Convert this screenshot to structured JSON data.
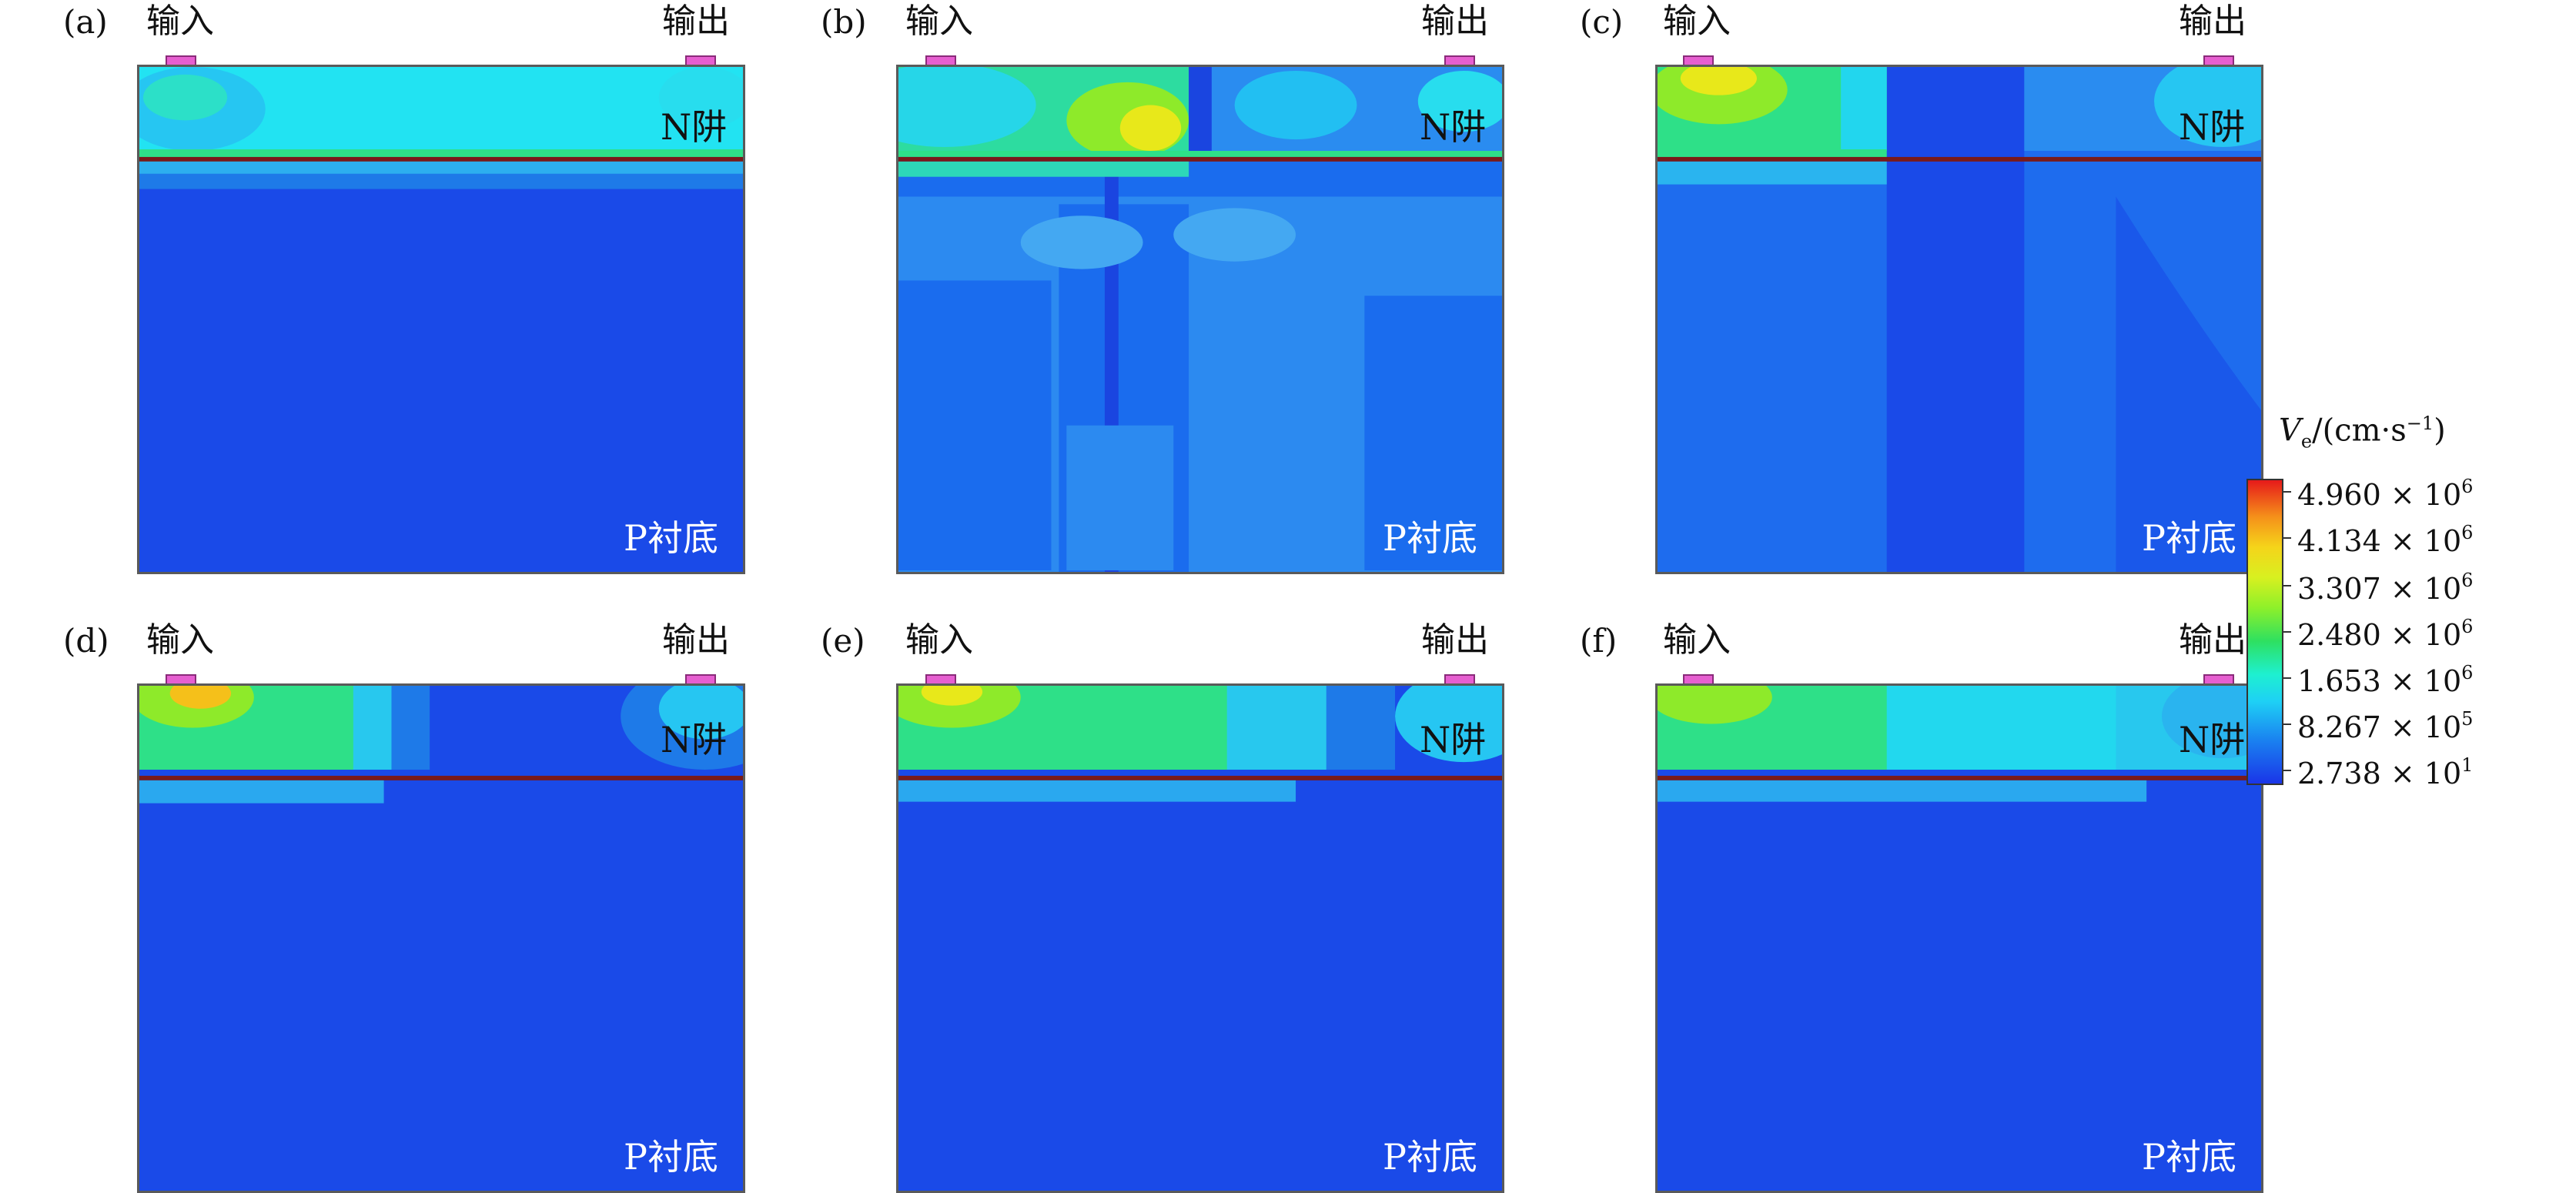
{
  "panels": [
    {
      "letter": "(a)",
      "input": "输入",
      "output": "输出",
      "nwell": "N阱",
      "substrate": "P衬底"
    },
    {
      "letter": "(b)",
      "input": "输入",
      "output": "输出",
      "nwell": "N阱",
      "substrate": "P衬底"
    },
    {
      "letter": "(c)",
      "input": "输入",
      "output": "输出",
      "nwell": "N阱",
      "substrate": "P衬底"
    },
    {
      "letter": "(d)",
      "input": "输入",
      "output": "输出",
      "nwell": "N阱",
      "substrate": "P衬底"
    },
    {
      "letter": "(e)",
      "input": "输入",
      "output": "输出",
      "nwell": "N阱",
      "substrate": "P衬底"
    },
    {
      "letter": "(f)",
      "input": "输入",
      "output": "输出",
      "nwell": "N阱",
      "substrate": "P衬底"
    }
  ],
  "colorbar": {
    "title_var": "V",
    "title_sub": "e",
    "title_rest": "/(cm·s",
    "title_exp": "−1",
    "title_close": ")",
    "ticks": [
      {
        "mantissa": "4.960 × 10",
        "exp": "6"
      },
      {
        "mantissa": "4.134 × 10",
        "exp": "6"
      },
      {
        "mantissa": "3.307 × 10",
        "exp": "6"
      },
      {
        "mantissa": "2.480 × 10",
        "exp": "6"
      },
      {
        "mantissa": "1.653 × 10",
        "exp": "6"
      },
      {
        "mantissa": "8.267 × 10",
        "exp": "5"
      },
      {
        "mantissa": "2.738 × 10",
        "exp": "1"
      }
    ],
    "colors": [
      "#1a35e8",
      "#1a80f0",
      "#1ed0f5",
      "#2ee060",
      "#d8f020",
      "#f5901a",
      "#e61a1a"
    ]
  }
}
